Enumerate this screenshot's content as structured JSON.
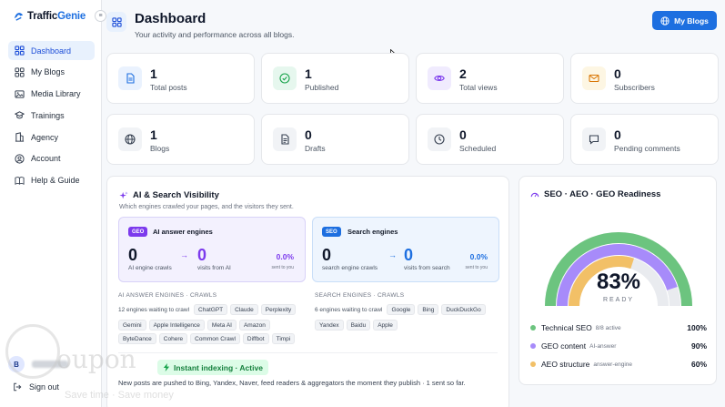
{
  "app": {
    "brand_part1": "Traffic",
    "brand_part2": "Genie"
  },
  "sidebar": {
    "items": [
      {
        "label": "Dashboard",
        "icon": "dashboard-icon",
        "active": true
      },
      {
        "label": "My Blogs",
        "icon": "grid-icon"
      },
      {
        "label": "Media Library",
        "icon": "image-icon"
      },
      {
        "label": "Trainings",
        "icon": "graduation-cap-icon"
      },
      {
        "label": "Agency",
        "icon": "building-icon"
      },
      {
        "label": "Account",
        "icon": "user-icon"
      },
      {
        "label": "Help & Guide",
        "icon": "book-icon"
      }
    ],
    "user_initial": "B",
    "signout_label": "Sign out"
  },
  "header": {
    "title": "Dashboard",
    "subtitle": "Your activity and performance across all blogs.",
    "my_blogs_label": "My Blogs"
  },
  "stats": [
    {
      "value": "1",
      "label": "Total posts",
      "icon": "document-icon",
      "bg": "#eaf2fe",
      "fg": "#1d6fe0"
    },
    {
      "value": "1",
      "label": "Published",
      "icon": "check-circle-icon",
      "bg": "#e6f7ee",
      "fg": "#16a34a"
    },
    {
      "value": "2",
      "label": "Total views",
      "icon": "eye-icon",
      "bg": "#f0ebfe",
      "fg": "#7c3aed"
    },
    {
      "value": "0",
      "label": "Subscribers",
      "icon": "mail-icon",
      "bg": "#fdf6e3",
      "fg": "#d97706"
    },
    {
      "value": "1",
      "label": "Blogs",
      "icon": "globe-icon",
      "bg": "#f1f3f6",
      "fg": "#374151"
    },
    {
      "value": "0",
      "label": "Drafts",
      "icon": "draft-icon",
      "bg": "#f1f3f6",
      "fg": "#374151"
    },
    {
      "value": "0",
      "label": "Scheduled",
      "icon": "clock-icon",
      "bg": "#f1f3f6",
      "fg": "#374151"
    },
    {
      "value": "0",
      "label": "Pending comments",
      "icon": "comment-icon",
      "bg": "#f1f3f6",
      "fg": "#374151"
    }
  ],
  "ai_visibility": {
    "title": "AI & Search Visibility",
    "subtitle": "Which engines crawled your pages, and the visitors they sent.",
    "geo": {
      "badge": "GEO",
      "title": "AI answer engines",
      "crawls": "0",
      "crawls_label": "AI engine crawls",
      "arrow": "→",
      "visits": "0",
      "visits_label": "visits from AI",
      "pct": "0.0%",
      "pct_label": "sent to you"
    },
    "seo": {
      "badge": "SEO",
      "title": "Search engines",
      "crawls": "0",
      "crawls_label": "search engine crawls",
      "arrow": "→",
      "visits": "0",
      "visits_label": "visits from search",
      "pct": "0.0%",
      "pct_label": "sent to you"
    },
    "ai_crawls_heading": "AI ANSWER ENGINES · CRAWLS",
    "ai_waiting": "12 engines waiting to crawl",
    "ai_engines": [
      "ChatGPT",
      "Claude",
      "Perplexity",
      "Gemini",
      "Apple Intelligence",
      "Meta AI",
      "Amazon",
      "ByteDance",
      "Cohere",
      "Common Crawl",
      "Diffbot",
      "Timpi"
    ],
    "search_crawls_heading": "SEARCH ENGINES · CRAWLS",
    "search_waiting": "6 engines waiting to crawl",
    "search_engines": [
      "Google",
      "Bing",
      "DuckDuckGo",
      "Yandex",
      "Baidu",
      "Apple"
    ],
    "indexing_label": "Instant indexing · Active",
    "indexing_desc": "New posts are pushed to Bing, Yandex, Naver, feed readers & aggregators the moment they publish · 1 sent so far."
  },
  "readiness": {
    "title": "SEO · AEO · GEO Readiness",
    "overall": 83,
    "overall_text": "83%",
    "caption": "READY",
    "items": [
      {
        "label": "Technical SEO",
        "sub": "8/8 active",
        "pct_text": "100%",
        "value": 1.0,
        "color": "#6cc47f"
      },
      {
        "label": "GEO content",
        "sub": "AI-answer",
        "pct_text": "90%",
        "value": 0.9,
        "color": "#a78bfa"
      },
      {
        "label": "AEO structure",
        "sub": "answer-engine",
        "pct_text": "60%",
        "value": 0.6,
        "color": "#f2c067"
      }
    ]
  },
  "watermark": {
    "brand": "oupon",
    "tagline": "Save time · Save money"
  }
}
